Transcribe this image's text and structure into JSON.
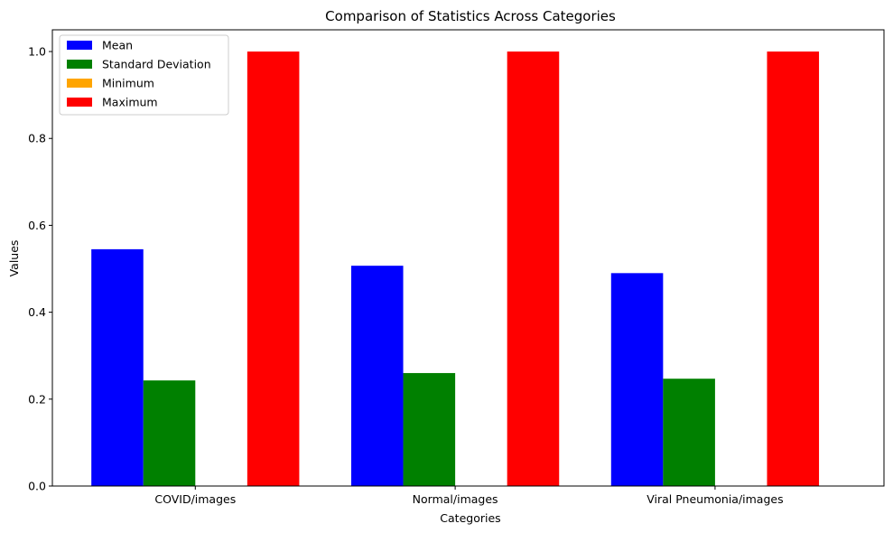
{
  "chart_data": {
    "type": "bar",
    "title": "Comparison of Statistics Across Categories",
    "xlabel": "Categories",
    "ylabel": "Values",
    "categories": [
      "COVID/images",
      "Normal/images",
      "Viral Pneumonia/images"
    ],
    "series": [
      {
        "name": "Mean",
        "color": "#0000ff",
        "values": [
          0.545,
          0.507,
          0.49
        ]
      },
      {
        "name": "Standard Deviation",
        "color": "#008000",
        "values": [
          0.243,
          0.26,
          0.247
        ]
      },
      {
        "name": "Minimum",
        "color": "#ffa500",
        "values": [
          0.0,
          0.0,
          0.0
        ]
      },
      {
        "name": "Maximum",
        "color": "#ff0000",
        "values": [
          1.0,
          1.0,
          1.0
        ]
      }
    ],
    "ylim": [
      0,
      1.05
    ],
    "yticks": [
      "0.0",
      "0.2",
      "0.4",
      "0.6",
      "0.8",
      "1.0"
    ],
    "ytick_values": [
      0.0,
      0.2,
      0.4,
      0.6,
      0.8,
      1.0
    ],
    "grid": false,
    "legend_position": "top-left"
  }
}
